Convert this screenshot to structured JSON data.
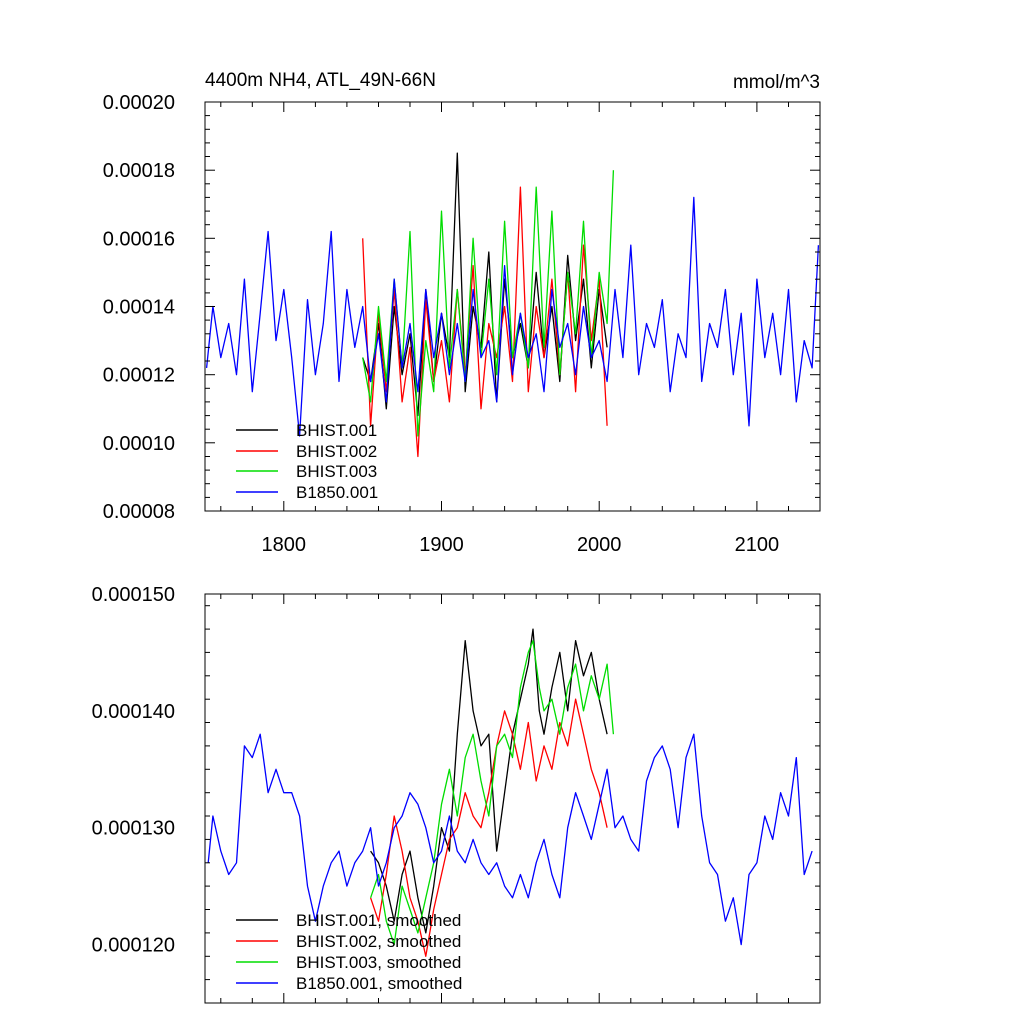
{
  "colors": {
    "BHIST.001": "#000000",
    "BHIST.002": "#ff0000",
    "BHIST.003": "#00dd00",
    "B1850.001": "#0000ff"
  },
  "chart_data": [
    {
      "type": "line",
      "title": "4400m NH4, ATL_49N-66N",
      "units_label": "mmol/m^3",
      "xlim": [
        1750,
        2140
      ],
      "ylim": [
        8e-05,
        0.0002
      ],
      "xticks": [
        1800,
        1900,
        2000,
        2100
      ],
      "yticks": [
        8e-05,
        0.0001,
        0.00012,
        0.00014,
        0.00016,
        0.00018,
        0.0002
      ],
      "ytick_labels": [
        "0.00008",
        "0.00010",
        "0.00012",
        "0.00014",
        "0.00016",
        "0.00018",
        "0.00020"
      ],
      "legend_position": "bottom-left",
      "series": [
        {
          "name": "BHIST.001",
          "x": [
            1850,
            1855,
            1860,
            1865,
            1870,
            1875,
            1880,
            1885,
            1890,
            1895,
            1900,
            1905,
            1910,
            1915,
            1920,
            1925,
            1930,
            1935,
            1940,
            1945,
            1950,
            1955,
            1960,
            1965,
            1970,
            1975,
            1980,
            1985,
            1990,
            1995,
            2000,
            2005
          ],
          "y": [
            0.000125,
            0.000118,
            0.000135,
            0.00011,
            0.00014,
            0.00012,
            0.000132,
            0.000108,
            0.000145,
            0.000118,
            0.000138,
            0.000125,
            0.000185,
            0.000115,
            0.00014,
            0.000128,
            0.000156,
            0.000112,
            0.000148,
            0.000125,
            0.000135,
            0.000122,
            0.00015,
            0.000125,
            0.00014,
            0.000118,
            0.000155,
            0.00013,
            0.000148,
            0.000122,
            0.000145,
            0.000128
          ]
        },
        {
          "name": "BHIST.002",
          "x": [
            1850,
            1855,
            1860,
            1865,
            1870,
            1875,
            1880,
            1885,
            1890,
            1895,
            1900,
            1905,
            1910,
            1915,
            1920,
            1925,
            1930,
            1935,
            1940,
            1945,
            1950,
            1955,
            1960,
            1965,
            1970,
            1975,
            1980,
            1985,
            1990,
            1995,
            2000,
            2005
          ],
          "y": [
            0.00016,
            0.000105,
            0.000138,
            0.000115,
            0.000145,
            0.000112,
            0.000128,
            9.6e-05,
            0.000142,
            0.000118,
            0.00013,
            0.000112,
            0.000145,
            0.00012,
            0.000152,
            0.00011,
            0.000135,
            0.000125,
            0.00014,
            0.000118,
            0.000175,
            0.000115,
            0.00014,
            0.000125,
            0.000148,
            0.00012,
            0.00015,
            0.000115,
            0.000158,
            0.00013,
            0.000148,
            0.000105
          ]
        },
        {
          "name": "BHIST.003",
          "x": [
            1850,
            1855,
            1860,
            1865,
            1870,
            1875,
            1880,
            1885,
            1890,
            1895,
            1900,
            1905,
            1910,
            1915,
            1920,
            1925,
            1930,
            1935,
            1940,
            1945,
            1950,
            1955,
            1960,
            1965,
            1970,
            1975,
            1980,
            1985,
            1990,
            1995,
            2000,
            2005,
            2009
          ],
          "y": [
            0.000125,
            0.000112,
            0.00014,
            0.000118,
            0.000148,
            0.000122,
            0.000162,
            0.000102,
            0.00013,
            0.000115,
            0.000168,
            0.000122,
            0.000145,
            0.000118,
            0.00016,
            0.000125,
            0.000148,
            0.00012,
            0.000165,
            0.000125,
            0.000138,
            0.000122,
            0.000175,
            0.000128,
            0.000168,
            0.00012,
            0.00015,
            0.000132,
            0.000165,
            0.000125,
            0.00015,
            0.000135,
            0.00018
          ]
        },
        {
          "name": "B1850.001",
          "x": [
            1751,
            1755,
            1760,
            1765,
            1770,
            1775,
            1780,
            1785,
            1790,
            1795,
            1800,
            1805,
            1810,
            1815,
            1820,
            1825,
            1830,
            1835,
            1840,
            1845,
            1850,
            1855,
            1860,
            1865,
            1870,
            1875,
            1880,
            1885,
            1890,
            1895,
            1900,
            1905,
            1910,
            1915,
            1920,
            1925,
            1930,
            1935,
            1940,
            1945,
            1950,
            1955,
            1960,
            1965,
            1970,
            1975,
            1980,
            1985,
            1990,
            1995,
            2000,
            2005,
            2010,
            2015,
            2020,
            2025,
            2030,
            2035,
            2040,
            2045,
            2050,
            2055,
            2060,
            2065,
            2070,
            2075,
            2080,
            2085,
            2090,
            2095,
            2100,
            2105,
            2110,
            2115,
            2120,
            2125,
            2130,
            2135,
            2139
          ],
          "y": [
            0.000122,
            0.00014,
            0.000125,
            0.000135,
            0.00012,
            0.000148,
            0.000115,
            0.000138,
            0.000162,
            0.00013,
            0.000145,
            0.000125,
            0.000102,
            0.000142,
            0.00012,
            0.000135,
            0.000162,
            0.000118,
            0.000145,
            0.000128,
            0.00014,
            0.000118,
            0.000132,
            0.000112,
            0.000148,
            0.000122,
            0.000135,
            0.000115,
            0.000145,
            0.000125,
            0.000138,
            0.00012,
            0.000135,
            0.000118,
            0.000145,
            0.000125,
            0.00013,
            0.000112,
            0.000152,
            0.00012,
            0.000138,
            0.000125,
            0.000132,
            0.000115,
            0.000145,
            0.000128,
            0.000135,
            0.00012,
            0.00014,
            0.000125,
            0.00013,
            0.000118,
            0.000145,
            0.000125,
            0.000158,
            0.00012,
            0.000135,
            0.000128,
            0.000142,
            0.000115,
            0.000132,
            0.000125,
            0.000172,
            0.000118,
            0.000135,
            0.000128,
            0.000145,
            0.00012,
            0.000138,
            0.000105,
            0.000148,
            0.000125,
            0.000138,
            0.00012,
            0.000145,
            0.000112,
            0.00013,
            0.000122,
            0.000158
          ]
        }
      ]
    },
    {
      "type": "line",
      "xlim": [
        1750,
        2140
      ],
      "ylim": [
        0.000115,
        0.00015
      ],
      "xticks": [
        1800,
        1900,
        2000,
        2100
      ],
      "yticks": [
        0.00012,
        0.00013,
        0.00014,
        0.00015
      ],
      "ytick_labels": [
        "0.000120",
        "0.000130",
        "0.000140",
        "0.000150"
      ],
      "legend_position": "bottom-left",
      "series": [
        {
          "name": "BHIST.001, smoothed",
          "x": [
            1855,
            1860,
            1865,
            1870,
            1875,
            1880,
            1885,
            1890,
            1895,
            1900,
            1905,
            1910,
            1915,
            1920,
            1925,
            1930,
            1935,
            1940,
            1945,
            1950,
            1955,
            1958,
            1962,
            1965,
            1970,
            1975,
            1980,
            1985,
            1990,
            1995,
            2000,
            2005
          ],
          "y": [
            0.000128,
            0.000127,
            0.000125,
            0.000122,
            0.000126,
            0.000128,
            0.000124,
            0.000121,
            0.000125,
            0.00013,
            0.000128,
            0.000138,
            0.000146,
            0.00014,
            0.000137,
            0.000138,
            0.000128,
            0.000133,
            0.000138,
            0.000141,
            0.000144,
            0.000147,
            0.00014,
            0.000138,
            0.000142,
            0.000145,
            0.00014,
            0.000146,
            0.000143,
            0.000145,
            0.000141,
            0.000138
          ]
        },
        {
          "name": "BHIST.002, smoothed",
          "x": [
            1855,
            1860,
            1865,
            1870,
            1875,
            1880,
            1885,
            1890,
            1895,
            1900,
            1905,
            1910,
            1915,
            1920,
            1925,
            1930,
            1935,
            1940,
            1945,
            1950,
            1955,
            1960,
            1965,
            1970,
            1975,
            1980,
            1985,
            1990,
            1995,
            2000,
            2005
          ],
          "y": [
            0.000124,
            0.000122,
            0.000126,
            0.000131,
            0.000128,
            0.000124,
            0.000122,
            0.000119,
            0.000123,
            0.000126,
            0.000129,
            0.00013,
            0.000133,
            0.000131,
            0.00013,
            0.000133,
            0.000137,
            0.00014,
            0.000138,
            0.000135,
            0.000139,
            0.000134,
            0.000137,
            0.000135,
            0.000139,
            0.000137,
            0.000141,
            0.000138,
            0.000135,
            0.000133,
            0.00013
          ]
        },
        {
          "name": "BHIST.003, smoothed",
          "x": [
            1855,
            1860,
            1865,
            1870,
            1875,
            1880,
            1885,
            1890,
            1895,
            1900,
            1905,
            1910,
            1915,
            1920,
            1925,
            1930,
            1935,
            1940,
            1945,
            1950,
            1955,
            1958,
            1962,
            1965,
            1970,
            1975,
            1980,
            1985,
            1990,
            1995,
            2000,
            2005,
            2009
          ],
          "y": [
            0.000124,
            0.000126,
            0.000122,
            0.00012,
            0.000125,
            0.000123,
            0.000121,
            0.000124,
            0.000127,
            0.000132,
            0.000135,
            0.000131,
            0.000136,
            0.000138,
            0.000134,
            0.000131,
            0.000137,
            0.000138,
            0.000136,
            0.000142,
            0.000145,
            0.000146,
            0.000142,
            0.00014,
            0.000141,
            0.000138,
            0.000142,
            0.000144,
            0.00014,
            0.000143,
            0.000141,
            0.000144,
            0.000138
          ]
        },
        {
          "name": "B1850.001, smoothed",
          "x": [
            1752,
            1755,
            1760,
            1765,
            1770,
            1775,
            1780,
            1785,
            1790,
            1795,
            1800,
            1805,
            1810,
            1815,
            1820,
            1825,
            1830,
            1835,
            1840,
            1845,
            1850,
            1855,
            1860,
            1865,
            1870,
            1875,
            1880,
            1885,
            1890,
            1895,
            1900,
            1905,
            1910,
            1915,
            1920,
            1925,
            1930,
            1935,
            1940,
            1945,
            1950,
            1955,
            1960,
            1965,
            1970,
            1975,
            1980,
            1985,
            1990,
            1995,
            2000,
            2005,
            2010,
            2015,
            2020,
            2025,
            2030,
            2035,
            2040,
            2045,
            2050,
            2055,
            2060,
            2065,
            2070,
            2075,
            2080,
            2085,
            2090,
            2095,
            2100,
            2105,
            2110,
            2115,
            2120,
            2125,
            2130,
            2135
          ],
          "y": [
            0.000127,
            0.000131,
            0.000128,
            0.000126,
            0.000127,
            0.000137,
            0.000136,
            0.000138,
            0.000133,
            0.000135,
            0.000133,
            0.000133,
            0.000131,
            0.000125,
            0.000122,
            0.000125,
            0.000127,
            0.000128,
            0.000125,
            0.000127,
            0.000128,
            0.00013,
            0.000125,
            0.000127,
            0.00013,
            0.000131,
            0.000133,
            0.000132,
            0.00013,
            0.000127,
            0.000128,
            0.000131,
            0.000128,
            0.000127,
            0.000129,
            0.000127,
            0.000126,
            0.000127,
            0.000125,
            0.000124,
            0.000126,
            0.000124,
            0.000127,
            0.000129,
            0.000126,
            0.000124,
            0.00013,
            0.000133,
            0.000131,
            0.000129,
            0.000132,
            0.000135,
            0.00013,
            0.000131,
            0.000129,
            0.000128,
            0.000134,
            0.000136,
            0.000137,
            0.000135,
            0.00013,
            0.000136,
            0.000138,
            0.000131,
            0.000127,
            0.000126,
            0.000122,
            0.000124,
            0.00012,
            0.000126,
            0.000127,
            0.000131,
            0.000129,
            0.000133,
            0.000131,
            0.000136,
            0.000126,
            0.000128
          ]
        }
      ]
    }
  ]
}
